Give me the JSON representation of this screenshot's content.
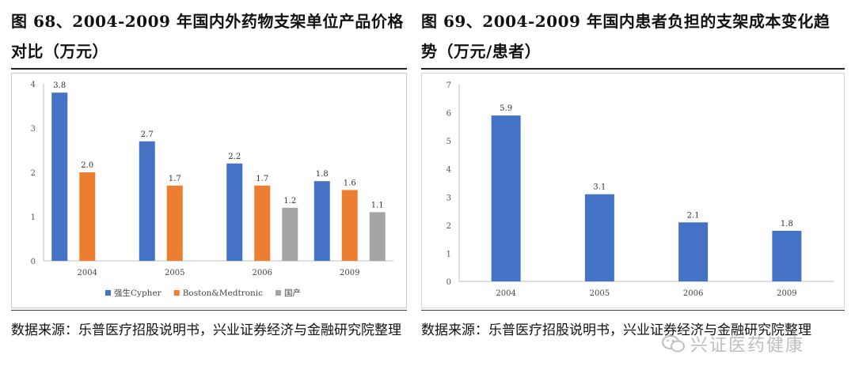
{
  "left": {
    "title": "图 68、2004-2009 年国内外药物支架单位产品价格对比（万元）",
    "source": "数据来源：乐普医疗招股说明书，兴业证券经济与金融研究院整理"
  },
  "right": {
    "title": "图 69、2004-2009 年国内患者负担的支架成本变化趋势（万元/患者）",
    "source": "数据来源：乐普医疗招股说明书，兴业证券经济与金融研究院整理"
  },
  "watermark": {
    "text": "兴证医药健康",
    "icon": "wechat-icon"
  },
  "colors": {
    "blue": "#4472C4",
    "orange": "#ED7D31",
    "gray": "#A5A5A5"
  },
  "chart_data": [
    {
      "type": "bar",
      "title": "2004-2009 年国内外药物支架单位产品价格对比（万元）",
      "categories": [
        "2004",
        "2005",
        "2006",
        "2009"
      ],
      "series": [
        {
          "name": "强生Cypher",
          "values": [
            3.8,
            2.7,
            2.2,
            1.8
          ],
          "labels": [
            "3.8",
            "2.7",
            "2.2",
            "1.8"
          ],
          "color": "#4472C4"
        },
        {
          "name": "Boston&Medtronic",
          "values": [
            2.0,
            1.7,
            1.7,
            1.6
          ],
          "labels": [
            "2.0",
            "1.7",
            "1.7",
            "1.6"
          ],
          "color": "#ED7D31"
        },
        {
          "name": "国产",
          "values": [
            null,
            null,
            1.2,
            1.1
          ],
          "labels": [
            "",
            "",
            "1.2",
            "1.1"
          ],
          "color": "#A5A5A5"
        }
      ],
      "ylim": [
        0,
        4
      ],
      "yticks": [
        "0",
        "1",
        "2",
        "3",
        "4"
      ],
      "legend": "bottom",
      "grid": false
    },
    {
      "type": "bar",
      "title": "2004-2009 年国内患者负担的支架成本变化趋势（万元/患者）",
      "categories": [
        "2004",
        "2005",
        "2006",
        "2009"
      ],
      "series": [
        {
          "values": [
            5.9,
            3.1,
            2.1,
            1.8
          ],
          "labels": [
            "5.9",
            "3.1",
            "2.1",
            "1.8"
          ],
          "color": "#4472C4"
        }
      ],
      "ylim": [
        0,
        7
      ],
      "yticks": [
        "0",
        "1",
        "2",
        "3",
        "4",
        "5",
        "6",
        "7"
      ],
      "grid": false
    }
  ]
}
